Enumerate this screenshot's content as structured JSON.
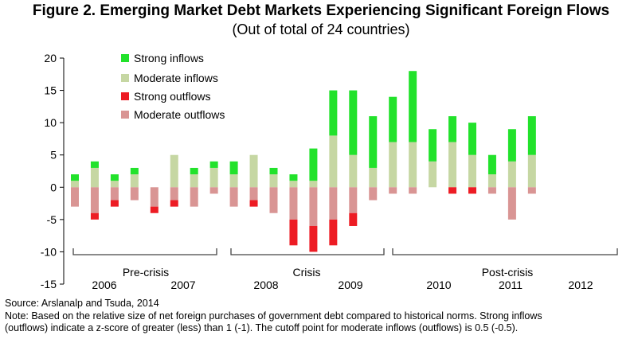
{
  "chart_data": {
    "type": "bar",
    "stacked": true,
    "title": "Figure 2. Emerging Market Debt Markets Experiencing Significant Foreign Flows",
    "subtitle": "(Out of total of 24 countries)",
    "ylim": [
      -15,
      20
    ],
    "yticks": [
      20,
      15,
      10,
      5,
      0,
      -5,
      -10,
      -15
    ],
    "series": [
      {
        "name": "Strong inflows",
        "color": "#22e22b",
        "values": [
          1,
          1,
          1,
          1,
          0,
          0,
          1,
          1,
          2,
          0,
          1,
          1,
          5,
          7,
          10,
          8,
          7,
          11,
          5,
          4,
          5,
          3,
          5,
          6
        ]
      },
      {
        "name": "Moderate inflows",
        "color": "#c6d7a3",
        "values": [
          1,
          3,
          1,
          2,
          0,
          5,
          2,
          3,
          2,
          5,
          2,
          1,
          1,
          8,
          5,
          3,
          7,
          7,
          4,
          7,
          5,
          2,
          4,
          5
        ]
      },
      {
        "name": "Strong outflows",
        "color": "#ed1c24",
        "values": [
          0,
          -1,
          -1,
          0,
          -1,
          -1,
          0,
          0,
          0,
          -1,
          0,
          -4,
          -4,
          -4,
          -2,
          0,
          0,
          0,
          0,
          -1,
          -1,
          0,
          0,
          0
        ]
      },
      {
        "name": "Moderate outflows",
        "color": "#d99594",
        "values": [
          -3,
          -4,
          -2,
          -2,
          -3,
          -2,
          -3,
          -1,
          -3,
          -2,
          -4,
          -5,
          -6,
          -5,
          -4,
          -2,
          -1,
          -1,
          0,
          0,
          0,
          -1,
          -5,
          -1
        ]
      }
    ],
    "periods": [
      "Pre-crisis",
      "Crisis",
      "Post-crisis"
    ],
    "year_labels": [
      "2006",
      "2007",
      "2008",
      "2009",
      "2010",
      "2011",
      "2012"
    ],
    "source": "Source: Arslanalp and Tsuda, 2014",
    "note_line1": "Note: Based on the relative size of net foreign purchases of government debt compared to historical norms. Strong inflows",
    "note_line2": "(outflows) indicate a z-score of greater (less) than 1 (-1). The  cutoff point for moderate inflows (outflows) is 0.5 (-0.5)."
  }
}
